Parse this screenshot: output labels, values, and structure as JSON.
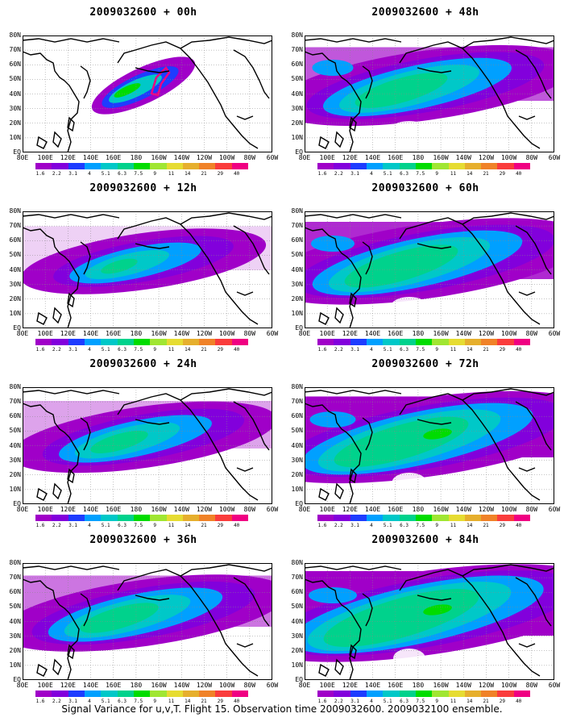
{
  "panels": [
    {
      "title": "2009032600 + 00h",
      "spread": 0.0
    },
    {
      "title": "2009032600 + 48h",
      "spread": 0.55
    },
    {
      "title": "2009032600 + 12h",
      "spread": 0.15
    },
    {
      "title": "2009032600 + 60h",
      "spread": 0.7
    },
    {
      "title": "2009032600 + 24h",
      "spread": 0.3
    },
    {
      "title": "2009032600 + 72h",
      "spread": 0.85
    },
    {
      "title": "2009032600 + 36h",
      "spread": 0.45
    },
    {
      "title": "2009032600 + 84h",
      "spread": 1.0
    }
  ],
  "lat_labels": [
    "80N",
    "70N",
    "60N",
    "50N",
    "40N",
    "30N",
    "20N",
    "10N",
    "EQ"
  ],
  "lon_labels": [
    "80E",
    "100E",
    "120E",
    "140E",
    "160E",
    "180",
    "160W",
    "140W",
    "120W",
    "100W",
    "80W",
    "60W"
  ],
  "colorbar": {
    "values": [
      "1.6",
      "2.2",
      "3.1",
      "4",
      "5.1",
      "6.3",
      "7.5",
      "9",
      "11",
      "14",
      "21",
      "29",
      "40"
    ],
    "colors": [
      "#a000c8",
      "#8200dc",
      "#1e3cff",
      "#00a0ff",
      "#00c8c8",
      "#00d28c",
      "#00dc00",
      "#a0e632",
      "#e6dc32",
      "#e6af2d",
      "#f08228",
      "#fa3c3c",
      "#f00082"
    ]
  },
  "caption": "Signal Variance for u,v,T. Flight 15. Observation time 2009032600. 2009032100 ensemble."
}
